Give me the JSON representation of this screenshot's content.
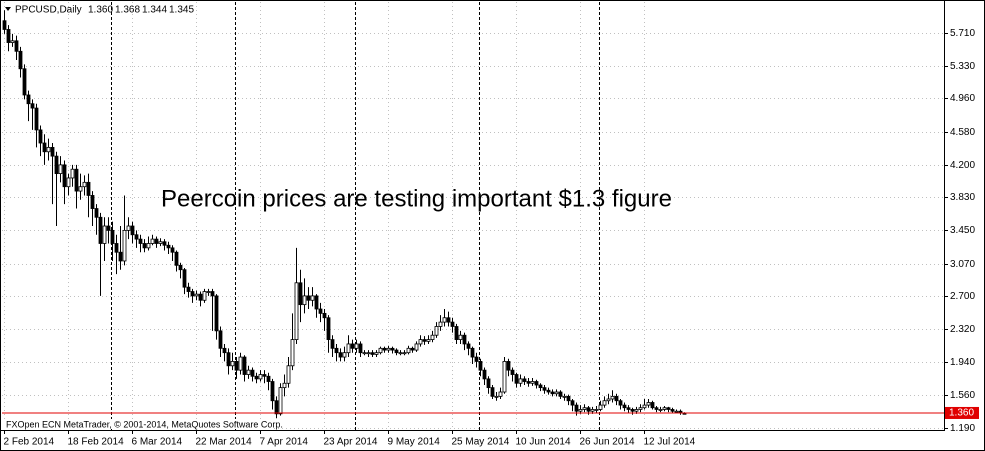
{
  "chart_data": {
    "type": "candlestick",
    "header": {
      "symbol": "PPCUSD,Daily",
      "ohlc": [
        "1.360",
        "1.368",
        "1.344",
        "1.345"
      ]
    },
    "annotation": "Peercoin prices are testing important $1.3 figure",
    "footer": "FXOpen ECN MetaTrader, © 2001-2014, MetaQuotes Software Corp.",
    "categories": [
      "2 Feb 2014",
      null,
      null,
      null,
      null,
      null,
      null,
      null,
      null,
      null,
      null,
      null,
      null,
      null,
      null,
      null,
      "18 Feb 2014",
      null,
      null,
      null,
      null,
      null,
      null,
      null,
      null,
      null,
      null,
      null,
      null,
      null,
      null,
      null,
      "6 Mar 2014",
      null,
      null,
      null,
      null,
      null,
      null,
      null,
      null,
      null,
      null,
      null,
      null,
      null,
      null,
      null,
      "22 Mar 2014",
      null,
      null,
      null,
      null,
      null,
      null,
      null,
      null,
      null,
      null,
      null,
      null,
      null,
      null,
      null,
      "7 Apr 2014",
      null,
      null,
      null,
      null,
      null,
      null,
      null,
      null,
      null,
      null,
      null,
      null,
      null,
      null,
      null,
      "23 Apr 2014",
      null,
      null,
      null,
      null,
      null,
      null,
      null,
      null,
      null,
      null,
      null,
      null,
      null,
      null,
      null,
      "9 May 2014",
      null,
      null,
      null,
      null,
      null,
      null,
      null,
      null,
      null,
      null,
      null,
      null,
      null,
      null,
      null,
      "25 May 2014",
      null,
      null,
      null,
      null,
      null,
      null,
      null,
      null,
      null,
      null,
      null,
      null,
      null,
      null,
      null,
      "10 Jun 2014",
      null,
      null,
      null,
      null,
      null,
      null,
      null,
      null,
      null,
      null,
      null,
      null,
      null,
      null,
      null,
      "26 Jun 2014",
      null,
      null,
      null,
      null,
      null,
      null,
      null,
      null,
      null,
      null,
      null,
      null,
      null,
      null,
      null,
      "12 Jul 2014",
      null,
      null,
      null,
      null,
      null,
      null,
      null,
      null,
      null,
      null
    ],
    "open": [
      5.85,
      5.75,
      5.6,
      5.62,
      5.5,
      5.3,
      5.0,
      4.9,
      4.85,
      4.6,
      4.45,
      4.35,
      4.4,
      4.3,
      4.1,
      4.2,
      3.95,
      4.05,
      4.15,
      3.9,
      3.95,
      4.0,
      3.85,
      3.7,
      3.6,
      3.3,
      3.5,
      3.45,
      3.3,
      3.2,
      3.1,
      3.45,
      3.5,
      3.4,
      3.35,
      3.3,
      3.25,
      3.3,
      3.35,
      3.3,
      3.32,
      3.28,
      3.25,
      3.2,
      3.05,
      3.0,
      2.8,
      2.75,
      2.7,
      2.72,
      2.65,
      2.75,
      2.75,
      2.7,
      2.3,
      2.1,
      2.05,
      1.9,
      1.95,
      1.85,
      2.0,
      1.8,
      1.85,
      1.78,
      1.75,
      1.8,
      1.78,
      1.72,
      1.5,
      1.35,
      1.65,
      1.7,
      1.9,
      2.2,
      2.85,
      2.6,
      2.7,
      2.65,
      2.7,
      2.55,
      2.5,
      2.45,
      2.2,
      2.1,
      2.05,
      2.0,
      2.05,
      2.15,
      2.1,
      2.15,
      2.05,
      2.05,
      2.05,
      2.03,
      2.05,
      2.1,
      2.08,
      2.1,
      2.08,
      2.05,
      2.05,
      2.05,
      2.1,
      2.08,
      2.15,
      2.2,
      2.18,
      2.2,
      2.25,
      2.35,
      2.4,
      2.45,
      2.4,
      2.35,
      2.2,
      2.25,
      2.15,
      2.1,
      2.0,
      1.95,
      1.85,
      1.75,
      1.65,
      1.55,
      1.55,
      1.6,
      1.95,
      1.85,
      1.8,
      1.7,
      1.75,
      1.72,
      1.7,
      1.72,
      1.68,
      1.65,
      1.62,
      1.6,
      1.58,
      1.6,
      1.55,
      1.55,
      1.5,
      1.45,
      1.38,
      1.4,
      1.42,
      1.38,
      1.4,
      1.4,
      1.45,
      1.5,
      1.52,
      1.55,
      1.5,
      1.45,
      1.42,
      1.4,
      1.38,
      1.4,
      1.42,
      1.45,
      1.48,
      1.42,
      1.4,
      1.4,
      1.42,
      1.4,
      1.38,
      1.38,
      1.36
    ],
    "high": [
      5.97,
      5.8,
      5.7,
      5.68,
      5.55,
      5.35,
      5.05,
      4.95,
      4.9,
      4.65,
      4.55,
      4.5,
      4.45,
      4.35,
      4.3,
      4.25,
      4.1,
      4.2,
      4.2,
      4.1,
      4.08,
      4.1,
      3.9,
      3.75,
      3.65,
      3.6,
      3.6,
      3.55,
      3.4,
      3.5,
      3.85,
      3.6,
      3.55,
      3.45,
      3.4,
      3.35,
      3.38,
      3.4,
      3.38,
      3.36,
      3.35,
      3.32,
      3.28,
      3.22,
      3.08,
      3.02,
      2.85,
      2.78,
      2.76,
      2.75,
      2.78,
      2.78,
      2.78,
      2.72,
      2.35,
      2.15,
      2.1,
      2.05,
      2.0,
      2.05,
      2.02,
      1.9,
      1.88,
      1.82,
      1.85,
      1.85,
      1.82,
      1.75,
      1.55,
      1.7,
      1.8,
      2.0,
      2.5,
      3.25,
      3.0,
      2.9,
      2.8,
      2.8,
      2.72,
      2.62,
      2.55,
      2.48,
      2.25,
      2.15,
      2.1,
      2.12,
      2.25,
      2.2,
      2.2,
      2.18,
      2.08,
      2.08,
      2.08,
      2.08,
      2.12,
      2.12,
      2.13,
      2.12,
      2.1,
      2.08,
      2.08,
      2.13,
      2.12,
      2.18,
      2.25,
      2.24,
      2.25,
      2.3,
      2.4,
      2.48,
      2.55,
      2.52,
      2.45,
      2.38,
      2.3,
      2.28,
      2.18,
      2.12,
      2.05,
      1.98,
      1.88,
      1.78,
      1.68,
      1.6,
      1.65,
      2.0,
      1.98,
      1.88,
      1.82,
      1.8,
      1.78,
      1.76,
      1.76,
      1.74,
      1.7,
      1.68,
      1.65,
      1.63,
      1.63,
      1.62,
      1.58,
      1.57,
      1.52,
      1.48,
      1.45,
      1.46,
      1.44,
      1.43,
      1.44,
      1.5,
      1.55,
      1.58,
      1.62,
      1.58,
      1.52,
      1.48,
      1.45,
      1.42,
      1.43,
      1.46,
      1.52,
      1.52,
      1.5,
      1.44,
      1.43,
      1.44,
      1.43,
      1.42,
      1.4,
      1.4,
      1.368
    ],
    "low": [
      5.7,
      5.5,
      5.55,
      5.4,
      5.2,
      4.95,
      4.7,
      4.6,
      4.4,
      4.3,
      4.2,
      4.25,
      3.75,
      3.5,
      4.0,
      3.75,
      3.85,
      3.95,
      3.7,
      3.8,
      3.85,
      3.6,
      3.5,
      3.4,
      2.7,
      3.1,
      3.3,
      3.1,
      2.95,
      3.0,
      3.05,
      3.35,
      3.3,
      3.25,
      3.2,
      3.2,
      3.22,
      3.28,
      3.25,
      3.27,
      3.22,
      3.18,
      3.1,
      2.98,
      2.9,
      2.72,
      2.68,
      2.62,
      2.65,
      2.58,
      2.62,
      2.7,
      2.3,
      2.2,
      2.0,
      1.95,
      1.8,
      1.85,
      1.75,
      1.8,
      1.72,
      1.75,
      1.72,
      1.7,
      1.72,
      1.7,
      1.62,
      1.4,
      1.3,
      1.33,
      1.55,
      1.65,
      1.85,
      2.15,
      2.4,
      2.5,
      2.55,
      2.58,
      2.45,
      2.4,
      2.3,
      2.05,
      2.0,
      1.95,
      1.95,
      1.95,
      2.0,
      2.05,
      2.05,
      2.0,
      2.02,
      2.0,
      2.0,
      2.0,
      2.03,
      2.05,
      2.05,
      2.04,
      2.02,
      2.02,
      2.02,
      2.03,
      2.05,
      2.06,
      2.12,
      2.14,
      2.15,
      2.17,
      2.22,
      2.3,
      2.35,
      2.35,
      2.28,
      2.15,
      2.15,
      2.08,
      2.02,
      1.92,
      1.88,
      1.78,
      1.68,
      1.58,
      1.52,
      1.5,
      1.52,
      1.58,
      1.78,
      1.72,
      1.65,
      1.66,
      1.68,
      1.66,
      1.67,
      1.64,
      1.61,
      1.58,
      1.57,
      1.55,
      1.55,
      1.52,
      1.5,
      1.45,
      1.38,
      1.33,
      1.35,
      1.37,
      1.34,
      1.35,
      1.36,
      1.38,
      1.42,
      1.46,
      1.48,
      1.45,
      1.4,
      1.38,
      1.36,
      1.34,
      1.35,
      1.37,
      1.4,
      1.42,
      1.4,
      1.37,
      1.37,
      1.38,
      1.37,
      1.36,
      1.36,
      1.34,
      1.344
    ],
    "close": [
      5.75,
      5.6,
      5.62,
      5.5,
      5.3,
      5.0,
      4.9,
      4.85,
      4.6,
      4.45,
      4.35,
      4.4,
      4.3,
      4.1,
      4.2,
      3.95,
      4.05,
      4.15,
      3.9,
      3.95,
      4.0,
      3.85,
      3.7,
      3.6,
      3.3,
      3.5,
      3.45,
      3.3,
      3.2,
      3.1,
      3.45,
      3.5,
      3.4,
      3.35,
      3.3,
      3.25,
      3.3,
      3.35,
      3.3,
      3.32,
      3.28,
      3.25,
      3.2,
      3.05,
      3.0,
      2.8,
      2.75,
      2.7,
      2.72,
      2.65,
      2.75,
      2.75,
      2.7,
      2.3,
      2.1,
      2.05,
      1.9,
      1.95,
      1.85,
      2.0,
      1.8,
      1.85,
      1.78,
      1.75,
      1.8,
      1.78,
      1.72,
      1.5,
      1.35,
      1.65,
      1.7,
      1.9,
      2.2,
      2.85,
      2.6,
      2.7,
      2.65,
      2.7,
      2.55,
      2.5,
      2.45,
      2.2,
      2.1,
      2.05,
      2.0,
      2.05,
      2.15,
      2.1,
      2.15,
      2.05,
      2.05,
      2.05,
      2.03,
      2.05,
      2.1,
      2.08,
      2.1,
      2.08,
      2.05,
      2.05,
      2.05,
      2.1,
      2.08,
      2.15,
      2.2,
      2.18,
      2.2,
      2.25,
      2.35,
      2.4,
      2.45,
      2.4,
      2.35,
      2.2,
      2.25,
      2.15,
      2.1,
      2.0,
      1.95,
      1.85,
      1.75,
      1.65,
      1.55,
      1.55,
      1.6,
      1.95,
      1.85,
      1.8,
      1.7,
      1.75,
      1.72,
      1.7,
      1.72,
      1.68,
      1.65,
      1.62,
      1.6,
      1.58,
      1.6,
      1.55,
      1.55,
      1.5,
      1.45,
      1.38,
      1.4,
      1.42,
      1.38,
      1.4,
      1.4,
      1.45,
      1.5,
      1.52,
      1.55,
      1.5,
      1.45,
      1.42,
      1.4,
      1.38,
      1.4,
      1.42,
      1.45,
      1.48,
      1.42,
      1.4,
      1.4,
      1.42,
      1.4,
      1.38,
      1.38,
      1.36,
      1.345
    ],
    "bull_color": "#ffffff",
    "bear_color": "#000000",
    "price_line": {
      "value": 1.36,
      "label": "1.360",
      "color": "#e00000"
    },
    "ylim": [
      1.165,
      6.03
    ],
    "yticks": [
      {
        "value": 5.71,
        "label": "5.710"
      },
      {
        "value": 5.33,
        "label": "5.330"
      },
      {
        "value": 4.96,
        "label": "4.960"
      },
      {
        "value": 4.58,
        "label": "4.580"
      },
      {
        "value": 4.2,
        "label": "4.200"
      },
      {
        "value": 3.83,
        "label": "3.830"
      },
      {
        "value": 3.45,
        "label": "3.450"
      },
      {
        "value": 3.07,
        "label": "3.070"
      },
      {
        "value": 2.7,
        "label": "2.700"
      },
      {
        "value": 2.32,
        "label": "2.320"
      },
      {
        "value": 1.94,
        "label": "1.940"
      },
      {
        "value": 1.56,
        "label": "1.560"
      },
      {
        "value": 1.19,
        "label": "1.190"
      }
    ],
    "grid": true
  }
}
